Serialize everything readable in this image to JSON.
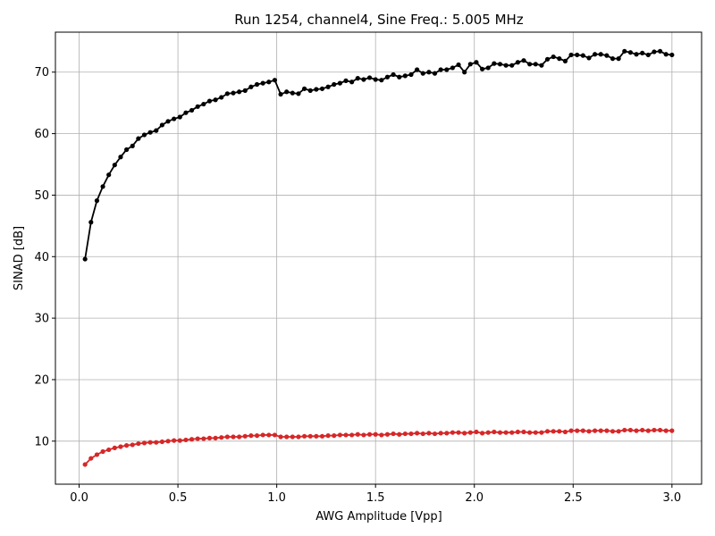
{
  "chart_data": {
    "type": "line",
    "title": "Run 1254, channel4, Sine Freq.: 5.005 MHz",
    "xlabel": "AWG Amplitude [Vpp]",
    "ylabel": "SINAD [dB]",
    "xlim": [
      -0.12,
      3.15
    ],
    "ylim": [
      3.0,
      76.5
    ],
    "xticks": [
      0.0,
      0.5,
      1.0,
      1.5,
      2.0,
      2.5,
      3.0
    ],
    "xtick_labels": [
      "0.0",
      "0.5",
      "1.0",
      "1.5",
      "2.0",
      "2.5",
      "3.0"
    ],
    "yticks": [
      10,
      20,
      30,
      40,
      50,
      60,
      70
    ],
    "ytick_labels": [
      "10",
      "20",
      "30",
      "40",
      "50",
      "60",
      "70"
    ],
    "grid": true,
    "legend": "none",
    "series": [
      {
        "color": "#000000",
        "marker": "circle",
        "points": [
          [
            0.03,
            39.6
          ],
          [
            0.06,
            45.6
          ],
          [
            0.09,
            49.1
          ],
          [
            0.12,
            51.4
          ],
          [
            0.15,
            53.3
          ],
          [
            0.18,
            54.9
          ],
          [
            0.21,
            56.2
          ],
          [
            0.24,
            57.4
          ],
          [
            0.27,
            58.0
          ],
          [
            0.3,
            59.2
          ],
          [
            0.33,
            59.8
          ],
          [
            0.36,
            60.2
          ],
          [
            0.39,
            60.5
          ],
          [
            0.42,
            61.4
          ],
          [
            0.45,
            62.0
          ],
          [
            0.48,
            62.4
          ],
          [
            0.51,
            62.7
          ],
          [
            0.54,
            63.4
          ],
          [
            0.57,
            63.8
          ],
          [
            0.6,
            64.4
          ],
          [
            0.63,
            64.8
          ],
          [
            0.66,
            65.3
          ],
          [
            0.69,
            65.5
          ],
          [
            0.72,
            65.9
          ],
          [
            0.75,
            66.5
          ],
          [
            0.78,
            66.6
          ],
          [
            0.81,
            66.8
          ],
          [
            0.84,
            67.0
          ],
          [
            0.87,
            67.6
          ],
          [
            0.9,
            68.0
          ],
          [
            0.93,
            68.2
          ],
          [
            0.96,
            68.4
          ],
          [
            0.99,
            68.7
          ],
          [
            1.02,
            66.4
          ],
          [
            1.05,
            66.8
          ],
          [
            1.08,
            66.6
          ],
          [
            1.11,
            66.5
          ],
          [
            1.14,
            67.3
          ],
          [
            1.17,
            67.0
          ],
          [
            1.2,
            67.2
          ],
          [
            1.23,
            67.3
          ],
          [
            1.26,
            67.6
          ],
          [
            1.29,
            68.0
          ],
          [
            1.32,
            68.2
          ],
          [
            1.35,
            68.6
          ],
          [
            1.38,
            68.4
          ],
          [
            1.41,
            69.0
          ],
          [
            1.44,
            68.8
          ],
          [
            1.47,
            69.1
          ],
          [
            1.5,
            68.8
          ],
          [
            1.53,
            68.7
          ],
          [
            1.56,
            69.2
          ],
          [
            1.59,
            69.6
          ],
          [
            1.62,
            69.2
          ],
          [
            1.65,
            69.4
          ],
          [
            1.68,
            69.6
          ],
          [
            1.71,
            70.4
          ],
          [
            1.74,
            69.8
          ],
          [
            1.77,
            70.0
          ],
          [
            1.8,
            69.8
          ],
          [
            1.83,
            70.4
          ],
          [
            1.86,
            70.4
          ],
          [
            1.89,
            70.7
          ],
          [
            1.92,
            71.2
          ],
          [
            1.95,
            70.0
          ],
          [
            1.98,
            71.3
          ],
          [
            2.01,
            71.6
          ],
          [
            2.04,
            70.5
          ],
          [
            2.07,
            70.7
          ],
          [
            2.1,
            71.4
          ],
          [
            2.13,
            71.3
          ],
          [
            2.16,
            71.1
          ],
          [
            2.19,
            71.1
          ],
          [
            2.22,
            71.6
          ],
          [
            2.25,
            71.9
          ],
          [
            2.28,
            71.3
          ],
          [
            2.31,
            71.3
          ],
          [
            2.34,
            71.1
          ],
          [
            2.37,
            72.1
          ],
          [
            2.4,
            72.5
          ],
          [
            2.43,
            72.2
          ],
          [
            2.46,
            71.8
          ],
          [
            2.49,
            72.8
          ],
          [
            2.52,
            72.8
          ],
          [
            2.55,
            72.7
          ],
          [
            2.58,
            72.3
          ],
          [
            2.61,
            72.9
          ],
          [
            2.64,
            72.9
          ],
          [
            2.67,
            72.7
          ],
          [
            2.7,
            72.2
          ],
          [
            2.73,
            72.2
          ],
          [
            2.76,
            73.4
          ],
          [
            2.79,
            73.2
          ],
          [
            2.82,
            72.9
          ],
          [
            2.85,
            73.1
          ],
          [
            2.88,
            72.8
          ],
          [
            2.91,
            73.3
          ],
          [
            2.94,
            73.4
          ],
          [
            2.97,
            72.9
          ],
          [
            3.0,
            72.8
          ]
        ]
      },
      {
        "color": "#d62728",
        "marker": "circle",
        "points": [
          [
            0.03,
            6.2
          ],
          [
            0.06,
            7.2
          ],
          [
            0.09,
            7.8
          ],
          [
            0.12,
            8.3
          ],
          [
            0.15,
            8.6
          ],
          [
            0.18,
            8.9
          ],
          [
            0.21,
            9.1
          ],
          [
            0.24,
            9.3
          ],
          [
            0.27,
            9.4
          ],
          [
            0.3,
            9.6
          ],
          [
            0.33,
            9.7
          ],
          [
            0.36,
            9.8
          ],
          [
            0.39,
            9.8
          ],
          [
            0.42,
            9.9
          ],
          [
            0.45,
            10.0
          ],
          [
            0.48,
            10.1
          ],
          [
            0.51,
            10.1
          ],
          [
            0.54,
            10.2
          ],
          [
            0.57,
            10.3
          ],
          [
            0.6,
            10.4
          ],
          [
            0.63,
            10.4
          ],
          [
            0.66,
            10.5
          ],
          [
            0.69,
            10.5
          ],
          [
            0.72,
            10.6
          ],
          [
            0.75,
            10.7
          ],
          [
            0.78,
            10.7
          ],
          [
            0.81,
            10.7
          ],
          [
            0.84,
            10.8
          ],
          [
            0.87,
            10.9
          ],
          [
            0.9,
            10.9
          ],
          [
            0.93,
            11.0
          ],
          [
            0.96,
            11.0
          ],
          [
            0.99,
            11.0
          ],
          [
            1.02,
            10.7
          ],
          [
            1.05,
            10.7
          ],
          [
            1.08,
            10.7
          ],
          [
            1.11,
            10.7
          ],
          [
            1.14,
            10.8
          ],
          [
            1.17,
            10.8
          ],
          [
            1.2,
            10.8
          ],
          [
            1.23,
            10.8
          ],
          [
            1.26,
            10.9
          ],
          [
            1.29,
            10.9
          ],
          [
            1.32,
            11.0
          ],
          [
            1.35,
            11.0
          ],
          [
            1.38,
            11.0
          ],
          [
            1.41,
            11.1
          ],
          [
            1.44,
            11.0
          ],
          [
            1.47,
            11.1
          ],
          [
            1.5,
            11.1
          ],
          [
            1.53,
            11.0
          ],
          [
            1.56,
            11.1
          ],
          [
            1.59,
            11.2
          ],
          [
            1.62,
            11.1
          ],
          [
            1.65,
            11.2
          ],
          [
            1.68,
            11.2
          ],
          [
            1.71,
            11.3
          ],
          [
            1.74,
            11.2
          ],
          [
            1.77,
            11.3
          ],
          [
            1.8,
            11.2
          ],
          [
            1.83,
            11.3
          ],
          [
            1.86,
            11.3
          ],
          [
            1.89,
            11.4
          ],
          [
            1.92,
            11.4
          ],
          [
            1.95,
            11.3
          ],
          [
            1.98,
            11.4
          ],
          [
            2.01,
            11.5
          ],
          [
            2.04,
            11.3
          ],
          [
            2.07,
            11.4
          ],
          [
            2.1,
            11.5
          ],
          [
            2.13,
            11.4
          ],
          [
            2.16,
            11.4
          ],
          [
            2.19,
            11.4
          ],
          [
            2.22,
            11.5
          ],
          [
            2.25,
            11.5
          ],
          [
            2.28,
            11.4
          ],
          [
            2.31,
            11.4
          ],
          [
            2.34,
            11.4
          ],
          [
            2.37,
            11.6
          ],
          [
            2.4,
            11.6
          ],
          [
            2.43,
            11.6
          ],
          [
            2.46,
            11.5
          ],
          [
            2.49,
            11.7
          ],
          [
            2.52,
            11.7
          ],
          [
            2.55,
            11.7
          ],
          [
            2.58,
            11.6
          ],
          [
            2.61,
            11.7
          ],
          [
            2.64,
            11.7
          ],
          [
            2.67,
            11.7
          ],
          [
            2.7,
            11.6
          ],
          [
            2.73,
            11.6
          ],
          [
            2.76,
            11.8
          ],
          [
            2.79,
            11.8
          ],
          [
            2.82,
            11.7
          ],
          [
            2.85,
            11.8
          ],
          [
            2.88,
            11.7
          ],
          [
            2.91,
            11.8
          ],
          [
            2.94,
            11.8
          ],
          [
            2.97,
            11.7
          ],
          [
            3.0,
            11.7
          ]
        ]
      }
    ]
  }
}
